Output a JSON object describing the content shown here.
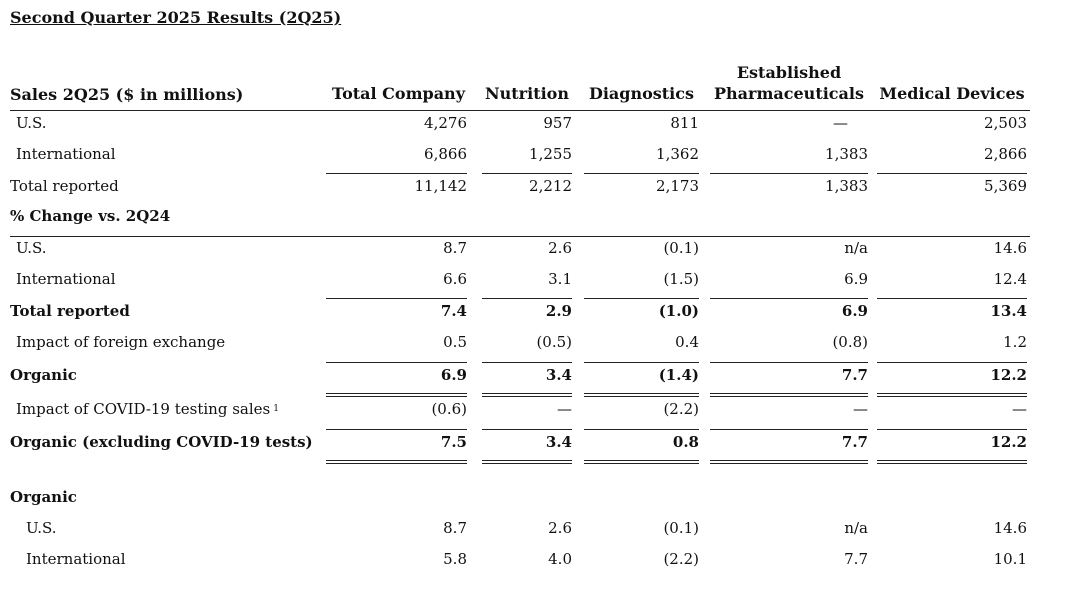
{
  "title": "Second Quarter 2025 Results (2Q25)",
  "header": {
    "label": "Sales 2Q25 ($ in millions)",
    "total_company": "Total Company",
    "nutrition": "Nutrition",
    "diagnostics": "Diagnostics",
    "established_line1": "Established",
    "established_line2": "Pharmaceuticals",
    "medical_devices": "Medical Devices"
  },
  "sales": {
    "us": {
      "label": "U.S.",
      "total": "4,276",
      "nutrition": "957",
      "diagnostics": "811",
      "established": "—",
      "devices": "2,503"
    },
    "intl": {
      "label": "International",
      "total": "6,866",
      "nutrition": "1,255",
      "diagnostics": "1,362",
      "established": "1,383",
      "devices": "2,866"
    },
    "total": {
      "label": "Total reported",
      "total": "11,142",
      "nutrition": "2,212",
      "diagnostics": "2,173",
      "established": "1,383",
      "devices": "5,369"
    }
  },
  "pct_header": "% Change vs. 2Q24",
  "pct": {
    "us": {
      "label": "U.S.",
      "total": "8.7",
      "nutrition": "2.6",
      "diagnostics": "(0.1)",
      "established": "n/a",
      "devices": "14.6"
    },
    "intl": {
      "label": "International",
      "total": "6.6",
      "nutrition": "3.1",
      "diagnostics": "(1.5)",
      "established": "6.9",
      "devices": "12.4"
    },
    "total": {
      "label": "Total reported",
      "total": "7.4",
      "nutrition": "2.9",
      "diagnostics": "(1.0)",
      "established": "6.9",
      "devices": "13.4"
    },
    "fx": {
      "label": "Impact of foreign exchange",
      "total": "0.5",
      "nutrition": "(0.5)",
      "diagnostics": "0.4",
      "established": "(0.8)",
      "devices": "1.2"
    },
    "organic": {
      "label": "Organic",
      "total": "6.9",
      "nutrition": "3.4",
      "diagnostics": "(1.4)",
      "established": "7.7",
      "devices": "12.2"
    },
    "covid": {
      "label": "Impact of COVID-19 testing sales",
      "footnote": "1",
      "total": "(0.6)",
      "nutrition": "—",
      "diagnostics": "(2.2)",
      "established": "—",
      "devices": "—"
    },
    "organic_ex": {
      "label": "Organic (excluding COVID-19 tests)",
      "total": "7.5",
      "nutrition": "3.4",
      "diagnostics": "0.8",
      "established": "7.7",
      "devices": "12.2"
    }
  },
  "organic_header": "Organic",
  "organic": {
    "us": {
      "label": "U.S.",
      "total": "8.7",
      "nutrition": "2.6",
      "diagnostics": "(0.1)",
      "established": "n/a",
      "devices": "14.6"
    },
    "intl": {
      "label": "International",
      "total": "5.8",
      "nutrition": "4.0",
      "diagnostics": "(2.2)",
      "established": "7.7",
      "devices": "10.1"
    }
  }
}
